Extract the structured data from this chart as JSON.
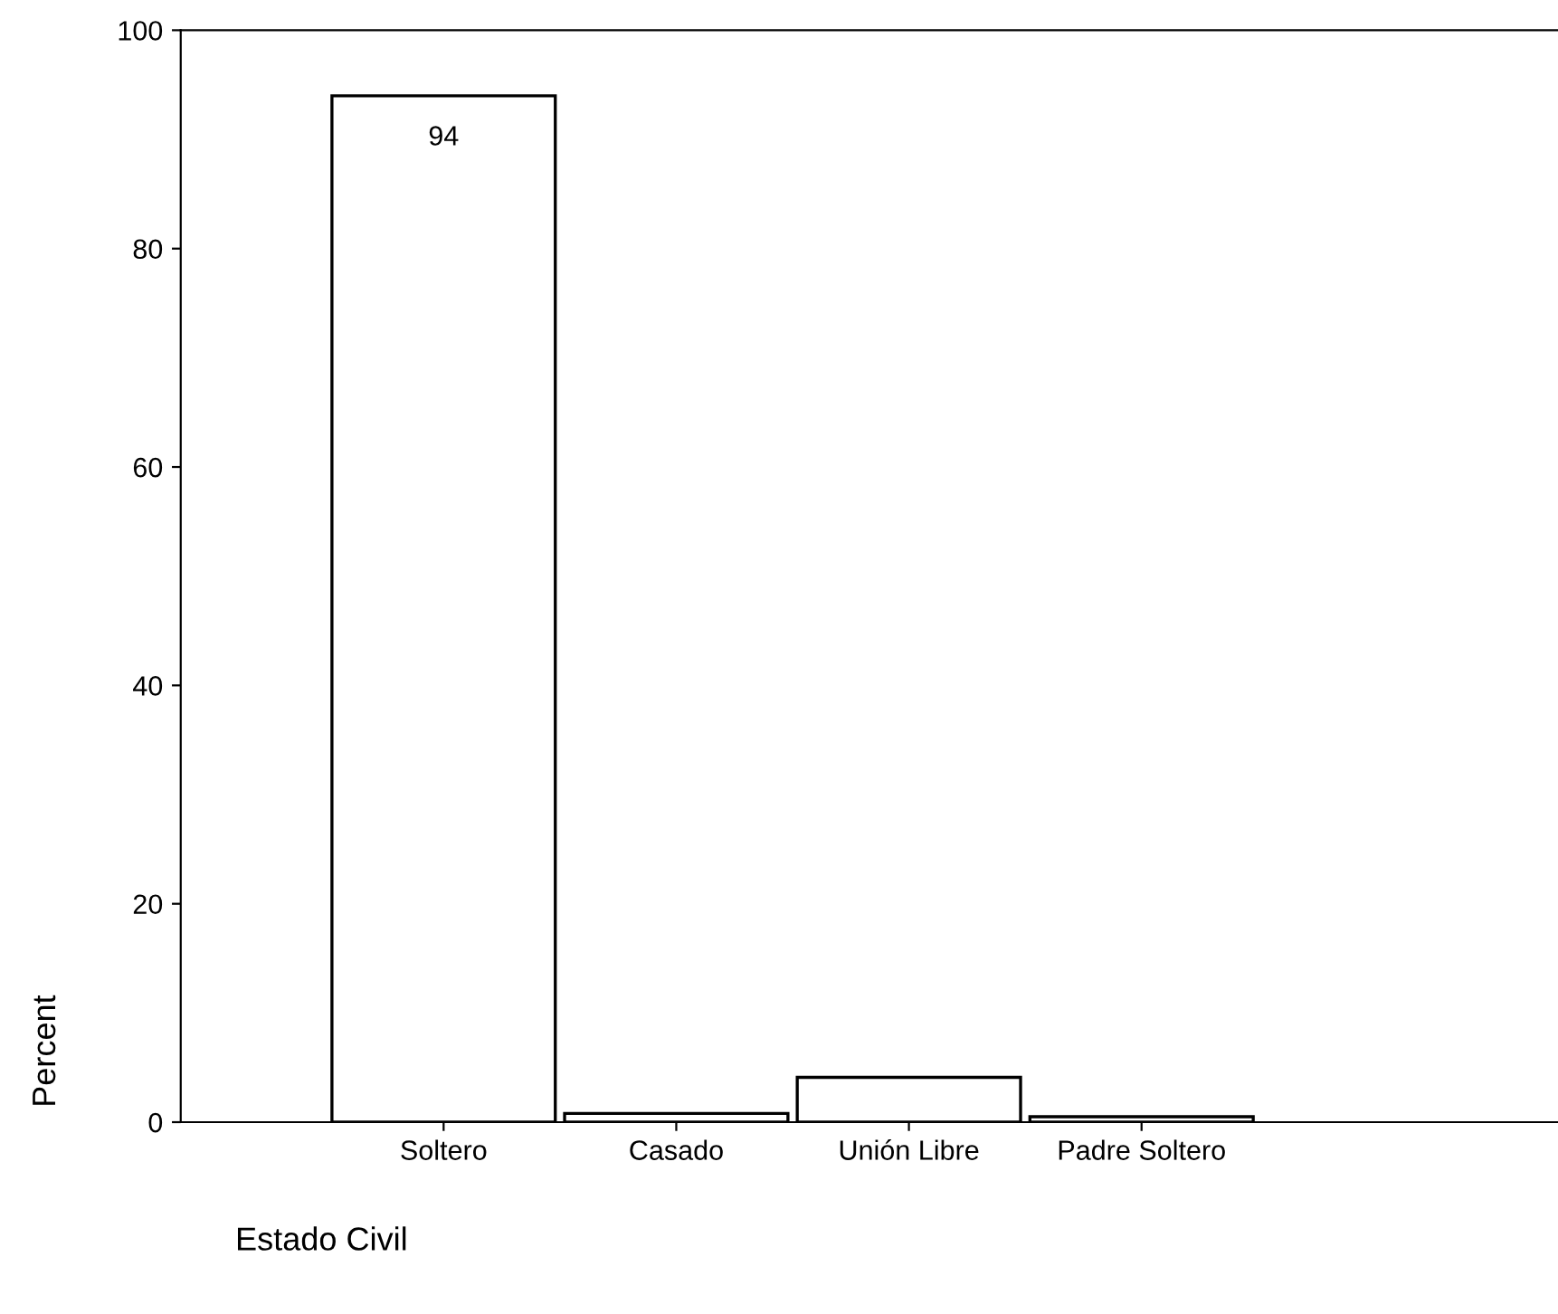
{
  "chart_data": {
    "type": "bar",
    "xlabel": "Estado Civil",
    "ylabel": "Percent",
    "categories": [
      "Soltero",
      "Casado",
      "Unión Libre",
      "Padre Soltero"
    ],
    "values": [
      94,
      0.8,
      4.1,
      0.5
    ],
    "value_labels": [
      "94",
      null,
      null,
      null
    ],
    "color": "#ffffff",
    "ylim": [
      0,
      100
    ],
    "yticks": [
      0,
      20,
      40,
      60,
      80,
      100
    ],
    "grid": false
  }
}
